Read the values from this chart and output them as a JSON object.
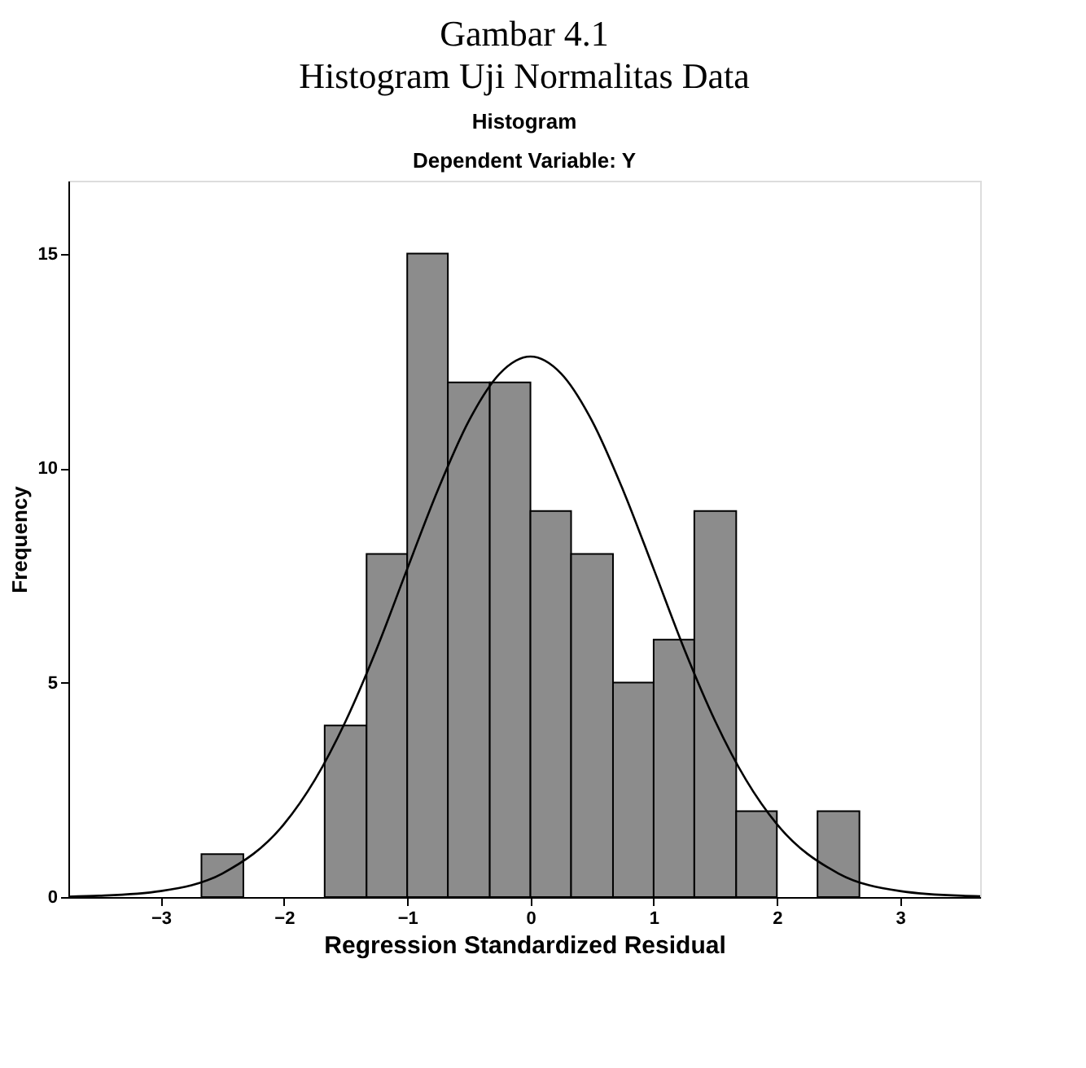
{
  "chart_data": {
    "type": "histogram",
    "title": "Gambar 4.1\nHistogram Uji Normalitas Data",
    "subtitle": "Histogram\nDependent Variable: Y",
    "xlabel": "Regression Standardized Residual",
    "ylabel": "Frequency",
    "bins": [
      -2.67,
      -2.33,
      -1.67,
      -1.33,
      -1,
      -0.67,
      -0.33,
      0,
      0.33,
      0.67,
      1,
      1.33,
      1.67,
      2,
      2.33,
      2.67
    ],
    "values": [
      1,
      0,
      4,
      8,
      15,
      12,
      12,
      9,
      8,
      5,
      6,
      9,
      2,
      0,
      2
    ],
    "color": "#8c8c8c",
    "series": [
      {
        "type": "line",
        "color": "#000000",
        "x": [
          -3.75,
          -3.5,
          -3,
          -2.5,
          -2,
          -1.75,
          -1.5,
          -1.25,
          -1,
          -0.75,
          -0.5,
          -0.25,
          0,
          0.25,
          0.5,
          0.75,
          1,
          1.25,
          1.5,
          1.75,
          2,
          2.5,
          3,
          3.5,
          3.65
        ],
        "values": [
          0.01,
          0.03,
          0.14,
          0.55,
          1.7,
          2.73,
          4.1,
          5.77,
          7.65,
          9.5,
          11.1,
          12.2,
          12.6,
          12.2,
          11.1,
          9.5,
          7.65,
          5.77,
          4.1,
          2.73,
          1.7,
          0.55,
          0.14,
          0.03,
          0.02
        ]
      }
    ],
    "xlim": [
      -3.75,
      3.65
    ],
    "ylim": [
      0,
      16.7
    ],
    "xticks": [
      -3,
      -2,
      -1,
      0,
      1,
      2,
      3
    ],
    "yticks": [
      0,
      5,
      10,
      15
    ],
    "grid": false
  }
}
